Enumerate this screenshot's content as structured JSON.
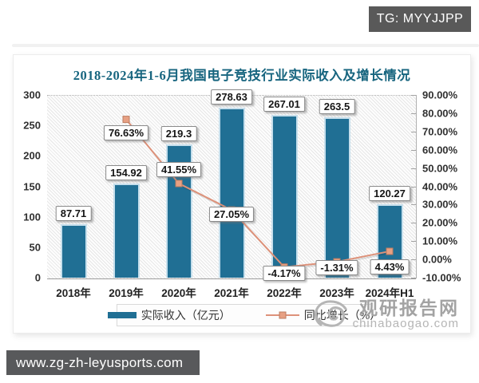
{
  "badge": {
    "label": "TG: MYYJJPP"
  },
  "url_bar": {
    "label": "www.zg-zh-leyusports.com"
  },
  "watermark": {
    "name": "观研报告网",
    "domain": "chinabaogao.com"
  },
  "chart_data": {
    "type": "combo: bar + line",
    "title": "2018-2024年1-6月我国电子竞技行业实际收入及增长情况",
    "categories": [
      "2018年",
      "2019年",
      "2020年",
      "2021年",
      "2022年",
      "2023年",
      "2024年H1"
    ],
    "series": [
      {
        "name": "实际收入（亿元）",
        "type": "bar",
        "axis": "left",
        "color": "#206f94",
        "values": [
          87.71,
          154.92,
          219.3,
          278.63,
          267.01,
          263.5,
          120.27
        ],
        "data_labels": [
          "87.71",
          "154.92",
          "219.3",
          "278.63",
          "267.01",
          "263.5",
          "120.27"
        ]
      },
      {
        "name": "同比增长（%）",
        "type": "line",
        "axis": "right",
        "color": "#dd9179",
        "marker": "square",
        "values": [
          null,
          76.63,
          41.55,
          27.05,
          -4.17,
          -1.31,
          4.43
        ],
        "data_labels": [
          null,
          "76.63%",
          "41.55%",
          "27.05%",
          "-4.17%",
          "-1.31%",
          "4.43%"
        ]
      }
    ],
    "left_axis": {
      "min": 0,
      "max": 300,
      "step": 50,
      "tick_labels": [
        "300",
        "250",
        "200",
        "150",
        "100",
        "50",
        "0"
      ]
    },
    "right_axis": {
      "min": -10,
      "max": 90,
      "step": 10,
      "tick_labels": [
        "90.00%",
        "80.00%",
        "70.00%",
        "60.00%",
        "50.00%",
        "40.00%",
        "30.00%",
        "20.00%",
        "10.00%",
        "0.00%",
        "-10.00%"
      ]
    },
    "legend_position": "bottom",
    "grid": "hatched plot background, dotted top border"
  },
  "colors": {
    "bar": "#206f94",
    "bar_edge": "#c6dfec",
    "line": "#dd9179",
    "marker_fill": "#e7a083",
    "marker_edge": "#bd7d61",
    "title": "#17657f",
    "badge_bg": "#595959",
    "url_bar_bg": "#58595b",
    "watermark": "#a3a3a3"
  }
}
